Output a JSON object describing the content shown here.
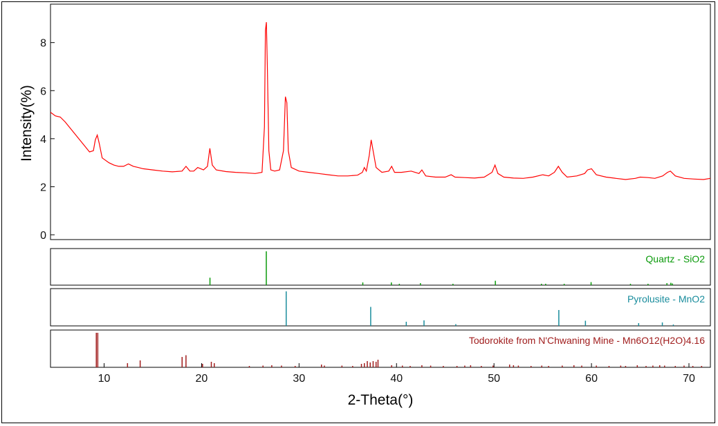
{
  "chart_data": {
    "type": "line",
    "xlabel": "2-Theta(°)",
    "ylabel": "Intensity(%)",
    "xlim": [
      4.5,
      72.2
    ],
    "ylim": [
      -0.2,
      9.6
    ],
    "x_ticks": [
      10,
      20,
      30,
      40,
      50,
      60,
      70
    ],
    "y_ticks": [
      0,
      2,
      4,
      6,
      8
    ],
    "grid": false,
    "pattern": {
      "color": "#ff0000",
      "points": [
        [
          4.5,
          5.1
        ],
        [
          5.0,
          4.95
        ],
        [
          5.5,
          4.9
        ],
        [
          6.0,
          4.7
        ],
        [
          6.5,
          4.45
        ],
        [
          7.0,
          4.2
        ],
        [
          7.5,
          3.95
        ],
        [
          8.0,
          3.7
        ],
        [
          8.5,
          3.45
        ],
        [
          8.9,
          3.5
        ],
        [
          9.1,
          3.95
        ],
        [
          9.3,
          4.15
        ],
        [
          9.5,
          3.8
        ],
        [
          9.8,
          3.2
        ],
        [
          10.5,
          3.0
        ],
        [
          11.0,
          2.9
        ],
        [
          11.5,
          2.85
        ],
        [
          12.0,
          2.85
        ],
        [
          12.5,
          2.95
        ],
        [
          13.0,
          2.85
        ],
        [
          13.5,
          2.8
        ],
        [
          14.0,
          2.75
        ],
        [
          15.0,
          2.7
        ],
        [
          16.0,
          2.65
        ],
        [
          17.0,
          2.62
        ],
        [
          18.0,
          2.65
        ],
        [
          18.4,
          2.85
        ],
        [
          18.8,
          2.65
        ],
        [
          19.2,
          2.65
        ],
        [
          19.6,
          2.8
        ],
        [
          20.2,
          2.7
        ],
        [
          20.6,
          2.85
        ],
        [
          20.85,
          3.6
        ],
        [
          21.1,
          2.9
        ],
        [
          21.5,
          2.7
        ],
        [
          22.5,
          2.63
        ],
        [
          23.5,
          2.6
        ],
        [
          24.5,
          2.58
        ],
        [
          25.5,
          2.55
        ],
        [
          26.2,
          2.6
        ],
        [
          26.45,
          4.5
        ],
        [
          26.55,
          8.5
        ],
        [
          26.65,
          8.85
        ],
        [
          26.75,
          7.0
        ],
        [
          26.9,
          3.5
        ],
        [
          27.1,
          2.7
        ],
        [
          27.5,
          2.65
        ],
        [
          28.0,
          2.7
        ],
        [
          28.4,
          3.5
        ],
        [
          28.6,
          5.75
        ],
        [
          28.75,
          5.5
        ],
        [
          28.9,
          3.5
        ],
        [
          29.2,
          2.8
        ],
        [
          30.0,
          2.65
        ],
        [
          31.0,
          2.6
        ],
        [
          32.0,
          2.55
        ],
        [
          33.0,
          2.5
        ],
        [
          34.0,
          2.45
        ],
        [
          35.0,
          2.45
        ],
        [
          36.0,
          2.48
        ],
        [
          36.5,
          2.6
        ],
        [
          36.7,
          2.8
        ],
        [
          36.9,
          2.65
        ],
        [
          37.2,
          3.3
        ],
        [
          37.4,
          3.95
        ],
        [
          37.6,
          3.5
        ],
        [
          37.9,
          2.8
        ],
        [
          38.5,
          2.6
        ],
        [
          39.2,
          2.65
        ],
        [
          39.5,
          2.85
        ],
        [
          39.8,
          2.6
        ],
        [
          40.5,
          2.6
        ],
        [
          41.5,
          2.65
        ],
        [
          42.3,
          2.55
        ],
        [
          42.6,
          2.7
        ],
        [
          43.0,
          2.45
        ],
        [
          44.0,
          2.4
        ],
        [
          45.0,
          2.4
        ],
        [
          45.6,
          2.5
        ],
        [
          46.0,
          2.4
        ],
        [
          47.0,
          2.38
        ],
        [
          48.0,
          2.36
        ],
        [
          49.0,
          2.4
        ],
        [
          49.8,
          2.6
        ],
        [
          50.1,
          2.9
        ],
        [
          50.4,
          2.55
        ],
        [
          51.0,
          2.4
        ],
        [
          52.0,
          2.36
        ],
        [
          53.0,
          2.35
        ],
        [
          54.0,
          2.4
        ],
        [
          55.0,
          2.5
        ],
        [
          55.6,
          2.45
        ],
        [
          56.2,
          2.6
        ],
        [
          56.6,
          2.85
        ],
        [
          57.0,
          2.6
        ],
        [
          57.5,
          2.4
        ],
        [
          58.5,
          2.45
        ],
        [
          59.3,
          2.55
        ],
        [
          59.6,
          2.7
        ],
        [
          60.0,
          2.75
        ],
        [
          60.5,
          2.5
        ],
        [
          61.5,
          2.4
        ],
        [
          62.5,
          2.35
        ],
        [
          63.5,
          2.3
        ],
        [
          64.5,
          2.35
        ],
        [
          65.0,
          2.4
        ],
        [
          65.8,
          2.38
        ],
        [
          66.5,
          2.35
        ],
        [
          67.3,
          2.45
        ],
        [
          67.8,
          2.6
        ],
        [
          68.1,
          2.65
        ],
        [
          68.6,
          2.45
        ],
        [
          69.5,
          2.35
        ],
        [
          70.5,
          2.32
        ],
        [
          71.5,
          2.3
        ],
        [
          72.2,
          2.35
        ]
      ]
    },
    "reference_phases": [
      {
        "label": "Quartz - SiO2",
        "color": "#0a9a0a",
        "sticks": [
          [
            20.86,
            22
          ],
          [
            26.64,
            100
          ],
          [
            36.54,
            8
          ],
          [
            39.47,
            8
          ],
          [
            40.29,
            4
          ],
          [
            42.45,
            6
          ],
          [
            45.79,
            4
          ],
          [
            50.14,
            13
          ],
          [
            54.87,
            4
          ],
          [
            55.3,
            3
          ],
          [
            57.2,
            1
          ],
          [
            59.96,
            9
          ],
          [
            64.0,
            2
          ],
          [
            65.8,
            1
          ],
          [
            67.74,
            6
          ],
          [
            68.14,
            7
          ],
          [
            68.3,
            5
          ]
        ]
      },
      {
        "label": "Pyrolusite - MnO2",
        "color": "#188c9c",
        "sticks": [
          [
            28.68,
            100
          ],
          [
            37.35,
            55
          ],
          [
            41.0,
            12
          ],
          [
            42.82,
            16
          ],
          [
            46.08,
            5
          ],
          [
            56.65,
            46
          ],
          [
            59.38,
            15
          ],
          [
            64.84,
            8
          ],
          [
            67.27,
            10
          ],
          [
            68.4,
            4
          ]
        ]
      },
      {
        "label": "Todorokite from N'Chwaning Mine - Mn6O12(H2O)4.16",
        "color": "#a01c1c",
        "sticks": [
          [
            9.2,
            100
          ],
          [
            9.35,
            100
          ],
          [
            12.4,
            12
          ],
          [
            13.7,
            20
          ],
          [
            18.0,
            30
          ],
          [
            18.4,
            35
          ],
          [
            20.1,
            10
          ],
          [
            21.0,
            16
          ],
          [
            21.3,
            12
          ],
          [
            24.9,
            4
          ],
          [
            26.3,
            5
          ],
          [
            27.2,
            6
          ],
          [
            28.2,
            5
          ],
          [
            29.6,
            4
          ],
          [
            32.3,
            8
          ],
          [
            32.6,
            5
          ],
          [
            34.4,
            5
          ],
          [
            35.5,
            4
          ],
          [
            36.4,
            10
          ],
          [
            36.7,
            12
          ],
          [
            37.0,
            18
          ],
          [
            37.3,
            14
          ],
          [
            37.6,
            18
          ],
          [
            37.9,
            16
          ],
          [
            38.1,
            22
          ],
          [
            39.5,
            6
          ],
          [
            40.6,
            5
          ],
          [
            41.4,
            4
          ],
          [
            42.6,
            6
          ],
          [
            43.5,
            5
          ],
          [
            44.8,
            4
          ],
          [
            46.2,
            4
          ],
          [
            47.0,
            5
          ],
          [
            47.6,
            6
          ],
          [
            48.7,
            4
          ],
          [
            49.9,
            5
          ],
          [
            51.6,
            8
          ],
          [
            52.0,
            6
          ],
          [
            52.5,
            5
          ],
          [
            53.8,
            4
          ],
          [
            54.9,
            5
          ],
          [
            55.6,
            4
          ],
          [
            57.0,
            5
          ],
          [
            58.2,
            6
          ],
          [
            59.0,
            5
          ],
          [
            60.5,
            5
          ],
          [
            61.8,
            4
          ],
          [
            63.0,
            5
          ],
          [
            63.5,
            4
          ],
          [
            64.7,
            6
          ],
          [
            65.6,
            4
          ],
          [
            66.3,
            5
          ],
          [
            67.0,
            6
          ],
          [
            67.5,
            5
          ],
          [
            68.6,
            4
          ],
          [
            69.5,
            5
          ],
          [
            70.4,
            4
          ],
          [
            71.3,
            3
          ]
        ]
      }
    ]
  }
}
